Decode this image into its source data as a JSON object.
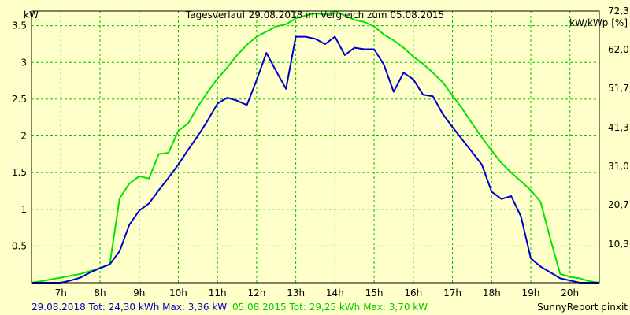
{
  "chart_data": {
    "type": "line",
    "title": "Tagesverlauf 29.08.2018 im Vergleich zum 05.08.2015",
    "ylabel_left": "kW",
    "ylabel_right": "kW/kWp [%]",
    "ylim": [
      0,
      3.7
    ],
    "x_ticks": [
      "7h",
      "8h",
      "9h",
      "10h",
      "11h",
      "12h",
      "13h",
      "14h",
      "15h",
      "16h",
      "17h",
      "18h",
      "19h",
      "20h"
    ],
    "y_ticks_left": [
      "0.5",
      "1",
      "1.5",
      "2",
      "2.5",
      "3",
      "3.5"
    ],
    "y_ticks_right": [
      "10,3",
      "20,7",
      "31,0",
      "41,3",
      "51,7",
      "62,0",
      "72,3"
    ],
    "grid": true,
    "series": [
      {
        "name": "29.08.2018",
        "color": "#0000cc",
        "x": [
          6.25,
          7.0,
          7.25,
          7.5,
          7.75,
          8.0,
          8.25,
          8.5,
          8.75,
          9.0,
          9.25,
          9.5,
          9.75,
          10.0,
          10.25,
          10.5,
          10.75,
          11.0,
          11.25,
          11.5,
          11.75,
          12.0,
          12.25,
          12.5,
          12.75,
          13.0,
          13.25,
          13.5,
          13.75,
          14.0,
          14.25,
          14.5,
          14.75,
          15.0,
          15.25,
          15.5,
          15.75,
          16.0,
          16.25,
          16.5,
          16.75,
          17.0,
          17.25,
          17.5,
          17.75,
          18.0,
          18.25,
          18.5,
          18.75,
          19.0,
          19.25,
          19.5,
          19.75,
          20.0,
          20.25,
          20.5,
          20.75
        ],
        "values": [
          0.0,
          0.0,
          0.03,
          0.07,
          0.14,
          0.2,
          0.25,
          0.43,
          0.79,
          0.98,
          1.08,
          1.26,
          1.43,
          1.61,
          1.81,
          2.0,
          2.21,
          2.44,
          2.52,
          2.48,
          2.42,
          2.76,
          3.13,
          2.88,
          2.64,
          3.35,
          3.35,
          3.32,
          3.25,
          3.35,
          3.1,
          3.2,
          3.18,
          3.18,
          2.97,
          2.6,
          2.86,
          2.77,
          2.56,
          2.54,
          2.3,
          2.12,
          1.95,
          1.78,
          1.61,
          1.24,
          1.14,
          1.18,
          0.9,
          0.33,
          0.22,
          0.14,
          0.06,
          0.03,
          0.0,
          0.0,
          0.0
        ]
      },
      {
        "name": "05.08.2015",
        "color": "#00e400",
        "x": [
          6.25,
          6.5,
          7.0,
          7.5,
          8.0,
          8.25,
          8.5,
          8.75,
          9.0,
          9.25,
          9.5,
          9.75,
          10.0,
          10.25,
          10.5,
          10.75,
          11.0,
          11.25,
          11.5,
          11.75,
          12.0,
          12.25,
          12.5,
          12.75,
          13.0,
          13.25,
          13.5,
          13.75,
          14.0,
          14.25,
          14.5,
          14.75,
          15.0,
          15.25,
          15.5,
          15.75,
          16.0,
          16.25,
          16.5,
          16.75,
          17.0,
          17.25,
          17.5,
          17.75,
          18.0,
          18.25,
          18.5,
          18.75,
          19.0,
          19.25,
          19.5,
          19.75,
          20.0,
          20.25,
          20.5,
          20.75
        ],
        "values": [
          0.0,
          0.02,
          0.07,
          0.12,
          0.2,
          0.25,
          1.15,
          1.35,
          1.45,
          1.42,
          1.75,
          1.77,
          2.07,
          2.17,
          2.4,
          2.6,
          2.78,
          2.93,
          3.1,
          3.24,
          3.35,
          3.42,
          3.49,
          3.52,
          3.6,
          3.64,
          3.67,
          3.65,
          3.7,
          3.64,
          3.58,
          3.55,
          3.49,
          3.38,
          3.3,
          3.2,
          3.08,
          2.98,
          2.86,
          2.73,
          2.55,
          2.37,
          2.17,
          1.98,
          1.8,
          1.63,
          1.5,
          1.38,
          1.26,
          1.1,
          0.6,
          0.12,
          0.08,
          0.06,
          0.02,
          0.0
        ]
      }
    ]
  },
  "footer": {
    "left_blue": "29.08.2018 Tot: 24,30 kWh Max: 3,36 kW",
    "left_green": "05.08.2015 Tot: 29,25 kWh Max: 3,70 kW",
    "right": "SunnyReport pinxit"
  }
}
